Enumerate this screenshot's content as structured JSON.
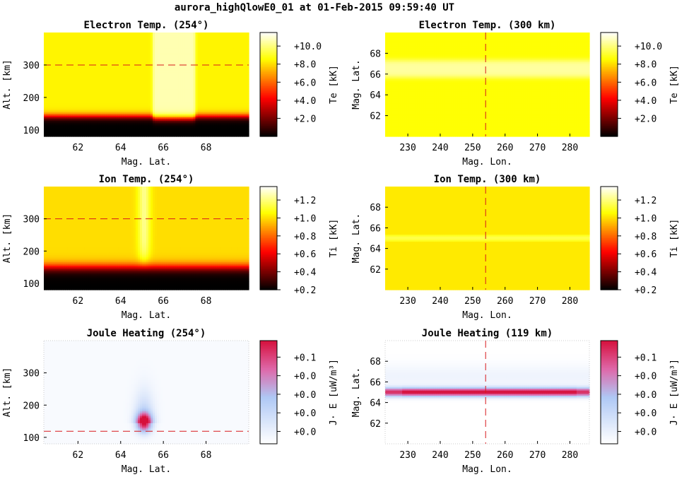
{
  "suptitle": "aurora_highQlowE0_01 at 01-Feb-2015 09:59:40 UT",
  "colors": {
    "marker_line": "#d7191c"
  },
  "chart_data": [
    {
      "type": "heatmap",
      "title": "Electron Temp. (254°)",
      "xlabel": "Mag. Lat.",
      "ylabel": "Alt. [km]",
      "xlim": [
        60.4,
        70.0
      ],
      "ylim": [
        80,
        400
      ],
      "xticks": [
        62,
        64,
        66,
        68
      ],
      "yticks": [
        100,
        200,
        300
      ],
      "colormap": "hot",
      "clim": [
        0,
        11.5
      ],
      "cbar_ticks": [
        2.0,
        4.0,
        6.0,
        8.0,
        10.0
      ],
      "cbar_ticklabels": [
        "+2.0",
        "+4.0",
        "+6.0",
        "+8.0",
        "+10.0"
      ],
      "cbar_label": "Te [kK]",
      "ref_line": {
        "axis": "y",
        "value": 300
      },
      "field": {
        "kind": "alt_te",
        "base": 8.4,
        "peak": 10.6,
        "band": [
          65.5,
          67.5
        ],
        "edge": 142
      }
    },
    {
      "type": "heatmap",
      "title": "Electron Temp. (300 km)",
      "xlabel": "Mag. Lon.",
      "ylabel": "Mag. Lat.",
      "xlim": [
        223,
        286
      ],
      "ylim": [
        60,
        70
      ],
      "xticks": [
        230,
        240,
        250,
        260,
        270,
        280
      ],
      "yticks": [
        62,
        64,
        66,
        68
      ],
      "colormap": "hot",
      "clim": [
        0,
        11.5
      ],
      "cbar_ticks": [
        2.0,
        4.0,
        6.0,
        8.0,
        10.0
      ],
      "cbar_ticklabels": [
        "+2.0",
        "+4.0",
        "+6.0",
        "+8.0",
        "+10.0"
      ],
      "cbar_label": "Te [kK]",
      "ref_line": {
        "axis": "x",
        "value": 254
      },
      "field": {
        "kind": "lat_band",
        "base": 8.6,
        "peak": 10.4,
        "center": 66.5,
        "width": 0.9
      }
    },
    {
      "type": "heatmap",
      "title": "Ion Temp. (254°)",
      "xlabel": "Mag. Lat.",
      "ylabel": "Alt. [km]",
      "xlim": [
        60.4,
        70.0
      ],
      "ylim": [
        80,
        400
      ],
      "xticks": [
        62,
        64,
        66,
        68
      ],
      "yticks": [
        100,
        200,
        300
      ],
      "colormap": "hot",
      "clim": [
        0.2,
        1.35
      ],
      "cbar_ticks": [
        0.2,
        0.4,
        0.6,
        0.8,
        1.0,
        1.2
      ],
      "cbar_ticklabels": [
        "+0.2",
        "+0.4",
        "+0.6",
        "+0.8",
        "+1.0",
        "+1.2"
      ],
      "cbar_label": "Ti [kK]",
      "ref_line": {
        "axis": "y",
        "value": 300
      },
      "field": {
        "kind": "alt_ti",
        "base": 1.0,
        "peak": 1.22,
        "center": 65.1,
        "edge": 150
      }
    },
    {
      "type": "heatmap",
      "title": "Ion Temp. (300 km)",
      "xlabel": "Mag. Lon.",
      "ylabel": "Mag. Lat.",
      "xlim": [
        223,
        286
      ],
      "ylim": [
        60,
        70
      ],
      "xticks": [
        230,
        240,
        250,
        260,
        270,
        280
      ],
      "yticks": [
        62,
        64,
        66,
        68
      ],
      "colormap": "hot",
      "clim": [
        0.2,
        1.35
      ],
      "cbar_ticks": [
        0.2,
        0.4,
        0.6,
        0.8,
        1.0,
        1.2
      ],
      "cbar_ticklabels": [
        "+0.2",
        "+0.4",
        "+0.6",
        "+0.8",
        "+1.0",
        "+1.2"
      ],
      "cbar_label": "Ti [kK]",
      "ref_line": {
        "axis": "x",
        "value": 254
      },
      "field": {
        "kind": "lat_band",
        "base": 1.02,
        "peak": 1.14,
        "center": 65.0,
        "width": 0.3
      }
    },
    {
      "type": "heatmap",
      "title": "Joule Heating (254°)",
      "xlabel": "Mag. Lat.",
      "ylabel": "Alt. [km]",
      "xlim": [
        60.4,
        70.0
      ],
      "ylim": [
        80,
        400
      ],
      "xticks": [
        62,
        64,
        66,
        68
      ],
      "yticks": [
        100,
        200,
        300
      ],
      "colormap": "white-blue-red",
      "clim": [
        0,
        1
      ],
      "cbar_ticks": [
        0.12,
        0.3,
        0.48,
        0.66,
        0.84
      ],
      "cbar_ticklabels": [
        "+0.0",
        "+0.0",
        "+0.0",
        "+0.0",
        "+0.1"
      ],
      "cbar_label": "J· E [uW/m³]",
      "ref_line": {
        "axis": "y",
        "value": 119
      },
      "field": {
        "kind": "blob",
        "center": [
          65.1,
          145
        ]
      }
    },
    {
      "type": "heatmap",
      "title": "Joule Heating (119 km)",
      "xlabel": "Mag. Lon.",
      "ylabel": "Mag. Lat.",
      "xlim": [
        223,
        286
      ],
      "ylim": [
        60,
        70
      ],
      "xticks": [
        230,
        240,
        250,
        260,
        270,
        280
      ],
      "yticks": [
        62,
        64,
        66,
        68
      ],
      "colormap": "white-blue-red",
      "clim": [
        0,
        1
      ],
      "cbar_ticks": [
        0.12,
        0.3,
        0.48,
        0.66,
        0.84
      ],
      "cbar_ticklabels": [
        "+0.0",
        "+0.0",
        "+0.0",
        "+0.0",
        "+0.1"
      ],
      "cbar_label": "J· E [uW/m³]",
      "ref_line": {
        "axis": "x",
        "value": 254
      },
      "field": {
        "kind": "joule_band",
        "center": 65.0
      }
    }
  ]
}
